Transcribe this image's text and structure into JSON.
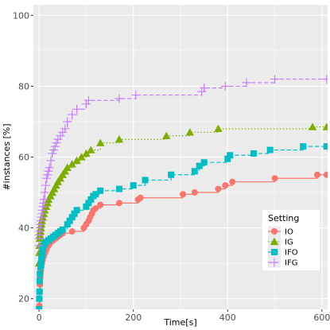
{
  "chart_data": {
    "type": "line",
    "title": "",
    "xlabel": "Time[s]",
    "ylabel": "#instances [%]",
    "xlim": [
      -12,
      612
    ],
    "ylim": [
      17,
      103
    ],
    "xticks": [
      0,
      200,
      400,
      600
    ],
    "xtick_labels": [
      "0",
      "200",
      "400",
      "600"
    ],
    "yticks": [
      20,
      40,
      60,
      80,
      100
    ],
    "ytick_labels": [
      "20",
      "40",
      "60",
      "80",
      "100"
    ],
    "grid": true,
    "background": "#ebebeb",
    "grid_color": "#ffffff",
    "legend": {
      "title": "Setting",
      "position": "bottom-right",
      "entries": [
        "IO",
        "IG",
        "IFO",
        "IFG"
      ]
    },
    "series": [
      {
        "name": "IO",
        "color": "#f8766d",
        "marker": "circle",
        "line_style": "solid",
        "x": [
          0,
          0.5,
          1,
          1.5,
          2,
          2.5,
          3,
          4,
          5,
          6,
          8,
          10,
          13,
          16,
          20,
          25,
          30,
          35,
          40,
          45,
          50,
          70,
          95,
          100,
          105,
          108,
          112,
          115,
          120,
          130,
          170,
          210,
          215,
          305,
          330,
          380,
          395,
          410,
          500,
          590,
          610
        ],
        "y": [
          17,
          18,
          20,
          22,
          24,
          26,
          27,
          28,
          29,
          30,
          31,
          32,
          33,
          34,
          35,
          36,
          36.5,
          37,
          37.5,
          38,
          38.5,
          39,
          40,
          41,
          42,
          43,
          44,
          45,
          45.5,
          46.5,
          47,
          48,
          48.5,
          49.5,
          50,
          51,
          52,
          53,
          54,
          55,
          55
        ]
      },
      {
        "name": "IG",
        "color": "#7cae00",
        "marker": "triangle",
        "line_style": "dotted",
        "x": [
          0,
          0.5,
          1,
          1.5,
          2,
          3,
          4,
          5,
          6,
          8,
          10,
          12,
          15,
          18,
          20,
          24,
          28,
          32,
          36,
          40,
          45,
          50,
          55,
          60,
          70,
          80,
          90,
          100,
          110,
          130,
          170,
          270,
          320,
          380,
          580,
          610
        ],
        "y": [
          30,
          33,
          35,
          37,
          38,
          39,
          40,
          41,
          42,
          43,
          44,
          45,
          46,
          47,
          48,
          49,
          50,
          51,
          52,
          53,
          54,
          55,
          56,
          57,
          58,
          59,
          60,
          61,
          62,
          64,
          65,
          66,
          67,
          68,
          68.5,
          68.5
        ]
      },
      {
        "name": "IFO",
        "color": "#00bfc4",
        "marker": "square",
        "line_style": "dashed",
        "x": [
          0,
          0.5,
          1,
          1.5,
          2,
          3,
          4,
          5,
          6,
          7,
          8,
          10,
          12,
          15,
          20,
          25,
          30,
          35,
          40,
          45,
          50,
          60,
          65,
          70,
          75,
          80,
          100,
          105,
          110,
          115,
          120,
          130,
          170,
          200,
          225,
          280,
          330,
          340,
          350,
          400,
          405,
          455,
          490,
          560,
          610
        ],
        "y": [
          17,
          20,
          22,
          25,
          27,
          29,
          30,
          31,
          32,
          33,
          34,
          35,
          35.5,
          36,
          36.5,
          37,
          37.5,
          38,
          38.5,
          39,
          39.5,
          41,
          42,
          43,
          44,
          45,
          46,
          47,
          48,
          49,
          49.5,
          50.5,
          51,
          52,
          53.5,
          55,
          56,
          57.5,
          58.5,
          59.5,
          60.5,
          61,
          62,
          63,
          63
        ]
      },
      {
        "name": "IFG",
        "color": "#c77cff",
        "marker": "plus",
        "line_style": "dashed",
        "x": [
          0,
          0.5,
          1,
          1.5,
          2,
          3,
          4,
          5,
          6,
          7,
          8,
          9,
          10,
          12,
          14,
          16,
          18,
          20,
          22,
          25,
          28,
          31,
          34,
          37,
          40,
          45,
          50,
          55,
          60,
          70,
          80,
          100,
          105,
          170,
          205,
          345,
          350,
          395,
          440,
          500,
          610
        ],
        "y": [
          35,
          37,
          38,
          39,
          40,
          41,
          42,
          43,
          44,
          45,
          46,
          47,
          48,
          50,
          52,
          54,
          55,
          56,
          57,
          59,
          61,
          62,
          63,
          64,
          65,
          66,
          67,
          68,
          70,
          72,
          73.5,
          75,
          76,
          76.5,
          77.5,
          78.5,
          79.5,
          80,
          81,
          82,
          82
        ]
      }
    ]
  }
}
